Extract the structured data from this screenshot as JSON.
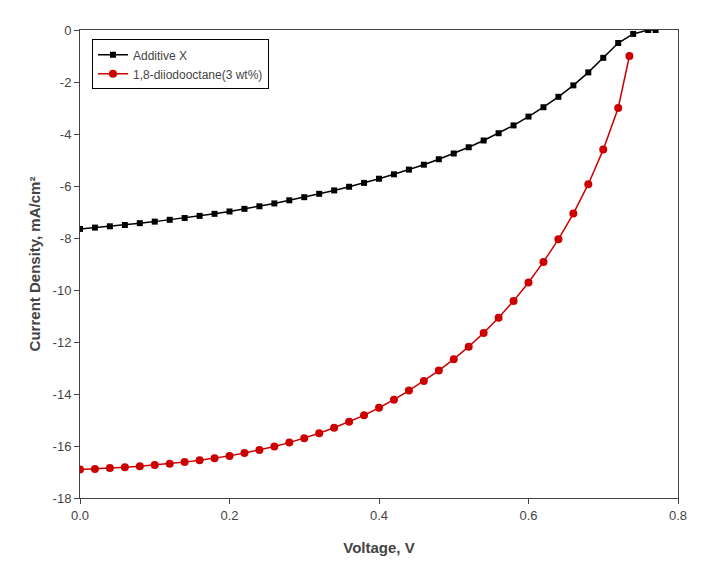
{
  "chart_data": {
    "type": "line",
    "xlabel": "Voltage, V",
    "ylabel": "Current Density, mA/cm²",
    "xlim": [
      0,
      0.8
    ],
    "ylim": [
      -18,
      0
    ],
    "xticks": [
      {
        "value": 0,
        "label": "0.0"
      },
      0.2,
      0.4,
      0.6,
      0.8
    ],
    "yticks": [
      0,
      -2,
      -4,
      -6,
      -8,
      -10,
      -12,
      -14,
      -16,
      -18
    ],
    "grid": false,
    "legend": "upper left",
    "series": [
      {
        "name": "Additive X",
        "color": "#000000",
        "marker": "square",
        "x": [
          0.0,
          0.02,
          0.04,
          0.06,
          0.08,
          0.1,
          0.12,
          0.14,
          0.16,
          0.18,
          0.2,
          0.22,
          0.24,
          0.26,
          0.28,
          0.3,
          0.32,
          0.34,
          0.36,
          0.38,
          0.4,
          0.42,
          0.44,
          0.46,
          0.48,
          0.5,
          0.52,
          0.54,
          0.56,
          0.58,
          0.6,
          0.62,
          0.64,
          0.66,
          0.68,
          0.7,
          0.72,
          0.74,
          0.76,
          0.77
        ],
        "values": [
          -7.65,
          -7.6,
          -7.55,
          -7.5,
          -7.43,
          -7.37,
          -7.3,
          -7.23,
          -7.15,
          -7.07,
          -6.98,
          -6.88,
          -6.78,
          -6.67,
          -6.55,
          -6.43,
          -6.3,
          -6.17,
          -6.03,
          -5.88,
          -5.72,
          -5.55,
          -5.37,
          -5.18,
          -4.97,
          -4.75,
          -4.51,
          -4.25,
          -3.97,
          -3.67,
          -3.33,
          -2.97,
          -2.57,
          -2.13,
          -1.63,
          -1.07,
          -0.5,
          -0.15,
          0.0,
          0.0
        ]
      },
      {
        "name": "1,8-diiodooctane(3 wt%)",
        "color": "#cc0000",
        "marker": "circle",
        "x": [
          0.0,
          0.02,
          0.04,
          0.06,
          0.08,
          0.1,
          0.12,
          0.14,
          0.16,
          0.18,
          0.2,
          0.22,
          0.24,
          0.26,
          0.28,
          0.3,
          0.32,
          0.34,
          0.36,
          0.38,
          0.4,
          0.42,
          0.44,
          0.46,
          0.48,
          0.5,
          0.52,
          0.54,
          0.56,
          0.58,
          0.6,
          0.62,
          0.64,
          0.66,
          0.68,
          0.7,
          0.72,
          0.735
        ],
        "values": [
          -16.9,
          -16.88,
          -16.85,
          -16.82,
          -16.78,
          -16.73,
          -16.68,
          -16.62,
          -16.55,
          -16.47,
          -16.38,
          -16.27,
          -16.15,
          -16.02,
          -15.87,
          -15.7,
          -15.51,
          -15.3,
          -15.07,
          -14.82,
          -14.53,
          -14.22,
          -13.87,
          -13.5,
          -13.1,
          -12.66,
          -12.18,
          -11.65,
          -11.07,
          -10.42,
          -9.71,
          -8.92,
          -8.05,
          -7.06,
          -5.93,
          -4.6,
          -3.0,
          -1.0
        ]
      }
    ]
  }
}
